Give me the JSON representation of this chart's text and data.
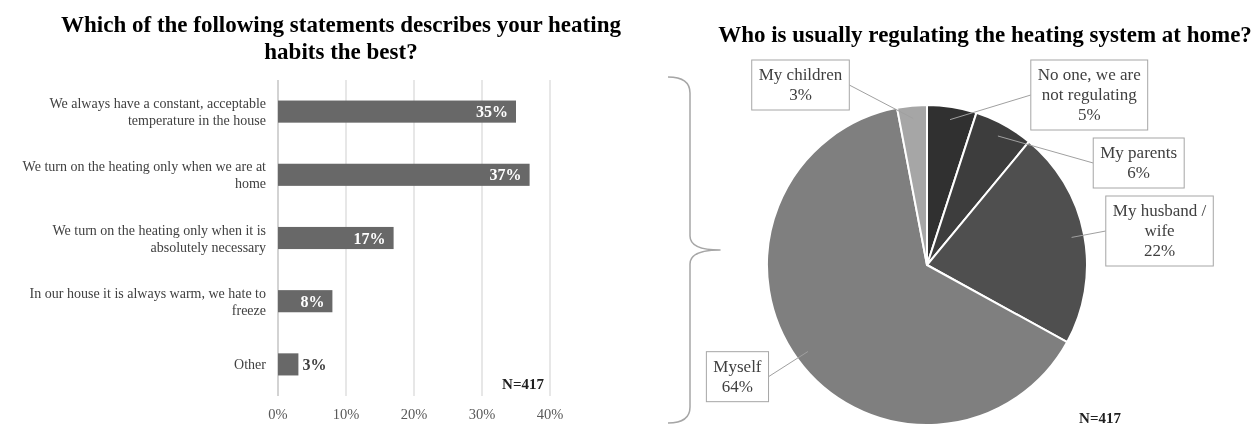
{
  "chart_data": [
    {
      "type": "bar",
      "orientation": "horizontal",
      "title": "Which of the following statements describes your heating habits the best?",
      "categories": [
        "We always have a constant, acceptable temperature in the house",
        "We turn on the heating only when we are at home",
        "We turn on the heating only when it is absolutely necessary",
        "In our house it is always warm, we hate to freeze",
        "Other"
      ],
      "values": [
        35,
        37,
        17,
        8,
        3
      ],
      "color": "#686868",
      "xlim": [
        0,
        40
      ],
      "xticks": [
        {
          "value": 0,
          "label": "0%"
        },
        {
          "value": 10,
          "label": "10%"
        },
        {
          "value": 20,
          "label": "20%"
        },
        {
          "value": 30,
          "label": "30%"
        },
        {
          "value": 40,
          "label": "40%"
        }
      ],
      "grid": "x",
      "value_labels": [
        "35%",
        "37%",
        "17%",
        "8%",
        "3%"
      ],
      "annotations": [
        "N=417"
      ]
    },
    {
      "type": "pie",
      "title": "Who is usually regulating the heating system at home?",
      "categories": [
        "No one, we are not regulating",
        "My parents",
        "My husband / wife",
        "Myself",
        "My children"
      ],
      "values": [
        5,
        6,
        22,
        64,
        3
      ],
      "colors": [
        "#303030",
        "#3d3d3d",
        "#4f4f4f",
        "#7f7f7f",
        "#a6a6a6"
      ],
      "value_labels": [
        "5%",
        "6%",
        "22%",
        "64%",
        "3%"
      ],
      "annotations": [
        "N=417"
      ]
    }
  ]
}
